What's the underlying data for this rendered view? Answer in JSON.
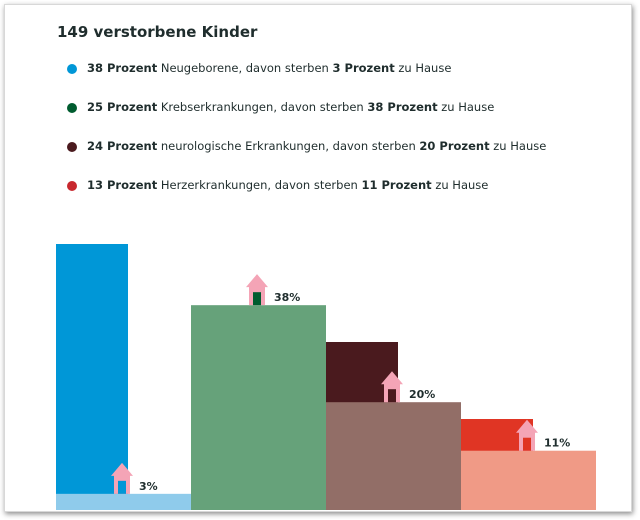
{
  "title": "149 verstorbene Kinder",
  "legend": [
    {
      "pct": "38 Prozent",
      "category": "Neugeborene",
      "mid": ", davon sterben ",
      "home_pct": "3 Prozent",
      "suffix": " zu Hause",
      "dot_color": "#0097d7"
    },
    {
      "pct": "25 Prozent",
      "category": "Krebserkrankungen",
      "mid": ", davon sterben ",
      "home_pct": "38 Prozent",
      "suffix": " zu Hause",
      "dot_color": "#005c2f"
    },
    {
      "pct": "24 Prozent",
      "category": "neurologische Erkrankungen",
      "mid": ", davon sterben ",
      "home_pct": "20 Prozent",
      "suffix": " zu Hause",
      "dot_color": "#4a1a1e"
    },
    {
      "pct": "13 Prozent",
      "category": "Herzerkrankungen",
      "mid": ", davon sterben ",
      "home_pct": "11 Prozent",
      "suffix": " zu Hause",
      "dot_color": "#c8282e"
    }
  ],
  "chart_data": {
    "type": "bar",
    "title": "149 verstorbene Kinder",
    "categories": [
      "Neugeborene",
      "Krebserkrankungen",
      "neurologische Erkrankungen",
      "Herzerkrankungen"
    ],
    "series": [
      {
        "values": [
          38,
          25,
          24,
          13
        ]
      },
      {
        "values": [
          3,
          38,
          20,
          11
        ]
      }
    ],
    "bar_labels": [
      "3%",
      "38%",
      "20%",
      "11%"
    ],
    "colors": {
      "share": [
        "#0097d7",
        "#005c2f",
        "#4a1a1e",
        "#e03524"
      ],
      "home": [
        "#8fcbeb",
        "#66a27a",
        "#926e67",
        "#f09a86"
      ],
      "house_icon": "#f4a4b6"
    },
    "grid": false,
    "legend_position": "top-left"
  }
}
